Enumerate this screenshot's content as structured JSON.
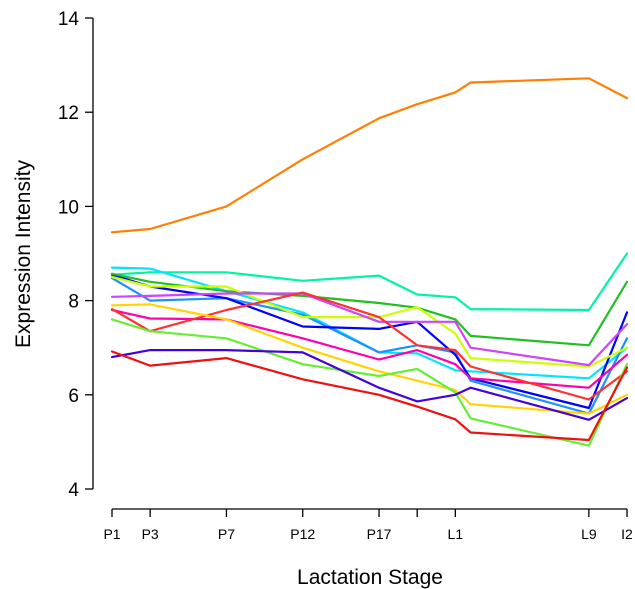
{
  "chart_data": {
    "type": "line",
    "title": "",
    "xlabel": "Lactation Stage",
    "ylabel": "Expression Intensity",
    "ylim": [
      4,
      14
    ],
    "yticks": [
      4,
      6,
      8,
      10,
      12,
      14
    ],
    "x_positions": [
      1,
      2,
      4,
      6,
      8,
      9,
      10,
      10.4,
      13.5,
      14.5
    ],
    "x_tick_positions": [
      1,
      2,
      4,
      6,
      8,
      9,
      10,
      13.5,
      14.5
    ],
    "x_tick_labels": [
      "P1",
      "P3",
      "P7",
      "P12",
      "P17",
      "",
      "L1",
      "L9",
      "I2"
    ],
    "xlim": [
      1,
      14.5
    ],
    "grid": false,
    "series": [
      {
        "color": "#ff7f00",
        "values": [
          9.45,
          9.52,
          10.0,
          11.0,
          11.87,
          12.17,
          12.42,
          12.63,
          12.72,
          12.3
        ]
      },
      {
        "color": "#00f5a0",
        "values": [
          8.55,
          8.6,
          8.6,
          8.42,
          8.53,
          8.13,
          8.07,
          7.82,
          7.8,
          9.0
        ]
      },
      {
        "color": "#00e5ff",
        "values": [
          8.7,
          8.68,
          8.2,
          7.75,
          6.9,
          6.88,
          6.52,
          6.5,
          6.35,
          7.0
        ]
      },
      {
        "color": "#1e90ff",
        "values": [
          8.48,
          8.0,
          8.05,
          7.7,
          6.9,
          7.05,
          6.9,
          6.3,
          5.6,
          7.2
        ]
      },
      {
        "color": "#0000ff",
        "values": [
          8.55,
          8.3,
          8.05,
          7.45,
          7.4,
          7.55,
          6.85,
          6.35,
          5.72,
          7.75
        ]
      },
      {
        "color": "#20c020",
        "values": [
          8.57,
          8.4,
          8.2,
          8.1,
          7.95,
          7.85,
          7.6,
          7.25,
          7.05,
          8.4
        ]
      },
      {
        "color": "#ccff00",
        "values": [
          8.5,
          8.3,
          8.3,
          7.65,
          7.65,
          7.86,
          7.3,
          6.78,
          6.6,
          7.0
        ]
      },
      {
        "color": "#cc44ff",
        "values": [
          8.08,
          8.1,
          8.15,
          8.15,
          7.55,
          7.55,
          7.55,
          7.0,
          6.63,
          7.5
        ]
      },
      {
        "color": "#ff00aa",
        "values": [
          7.8,
          7.62,
          7.6,
          7.2,
          6.75,
          6.95,
          6.65,
          6.35,
          6.15,
          6.85
        ]
      },
      {
        "color": "#ff3030",
        "values": [
          7.82,
          7.35,
          7.8,
          8.17,
          7.65,
          7.05,
          6.95,
          6.6,
          5.9,
          6.5
        ]
      },
      {
        "color": "#ffd400",
        "values": [
          7.9,
          7.92,
          7.6,
          7.0,
          6.5,
          6.3,
          6.1,
          5.8,
          5.6,
          6.0
        ]
      },
      {
        "color": "#66ee33",
        "values": [
          7.6,
          7.35,
          7.2,
          6.65,
          6.4,
          6.55,
          6.05,
          5.5,
          4.92,
          6.65
        ]
      },
      {
        "color": "#4400dd",
        "values": [
          6.8,
          6.95,
          6.95,
          6.9,
          6.15,
          5.86,
          6.0,
          6.15,
          5.47,
          5.93
        ]
      },
      {
        "color": "#ee1111",
        "values": [
          6.92,
          6.62,
          6.78,
          6.33,
          6.0,
          5.75,
          5.48,
          5.2,
          5.04,
          6.58
        ]
      }
    ]
  }
}
